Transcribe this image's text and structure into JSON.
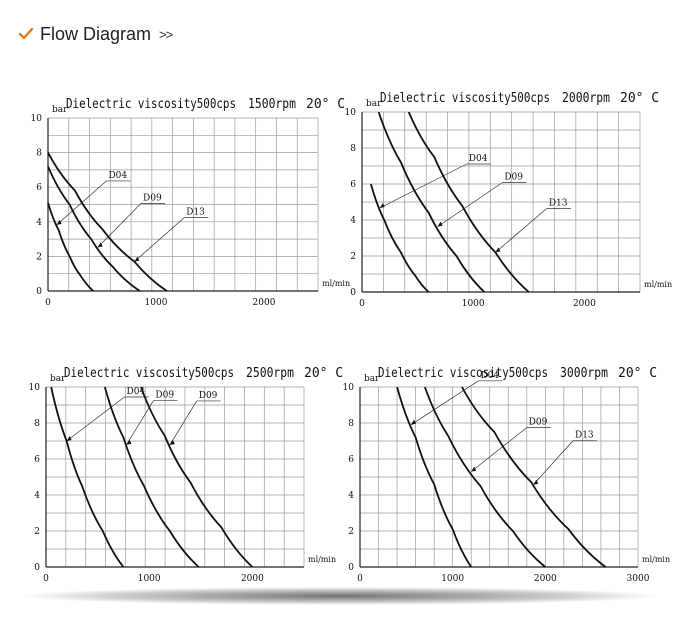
{
  "header": {
    "title": "Flow Diagram",
    "arrows": ">>",
    "icon": "check-icon",
    "icon_color": "#e07b1a"
  },
  "chart_data": [
    {
      "type": "line",
      "title": "Dielectric viscosity500cps",
      "rpm": "1500rpm",
      "temp": "20° C",
      "ylabel": "bar",
      "xlabel": "ml/min",
      "xlim": [
        0,
        2500
      ],
      "ylim": [
        0,
        10
      ],
      "xticks": [
        0,
        1000,
        2000
      ],
      "yticks": [
        0,
        2,
        4,
        6,
        8,
        10
      ],
      "grid": true,
      "series": [
        {
          "name": "D04",
          "x": [
            0,
            100,
            200,
            300,
            420
          ],
          "y": [
            5.1,
            3.5,
            2.0,
            0.9,
            0.0
          ],
          "pointer_x": 80,
          "label_x": 560
        },
        {
          "name": "D09",
          "x": [
            0,
            200,
            400,
            600,
            850
          ],
          "y": [
            7.2,
            5.0,
            3.0,
            1.4,
            0.0
          ],
          "pointer_x": 460,
          "label_x": 880
        },
        {
          "name": "D13",
          "x": [
            0,
            250,
            500,
            800,
            1100
          ],
          "y": [
            8.0,
            5.8,
            3.6,
            1.7,
            0.0
          ],
          "pointer_x": 800,
          "label_x": 1280
        }
      ]
    },
    {
      "type": "line",
      "title": "Dielectric viscosity500cps",
      "rpm": "2000rpm",
      "temp": "20° C",
      "ylabel": "bar",
      "xlabel": "ml/min",
      "xlim": [
        0,
        2500
      ],
      "ylim": [
        0,
        10
      ],
      "xticks": [
        0,
        1000,
        2000
      ],
      "yticks": [
        0,
        2,
        4,
        6,
        8,
        10
      ],
      "grid": true,
      "series": [
        {
          "name": "D04",
          "x": [
            80,
            200,
            350,
            480,
            600
          ],
          "y": [
            6.0,
            4.0,
            2.2,
            0.9,
            0.0
          ],
          "pointer_x": 160,
          "label_x": 960
        },
        {
          "name": "D09",
          "x": [
            150,
            350,
            600,
            850,
            1100
          ],
          "y": [
            10.0,
            7.2,
            4.4,
            2.0,
            0.0
          ],
          "pointer_x": 680,
          "label_x": 1280
        },
        {
          "name": "D13",
          "x": [
            420,
            650,
            900,
            1200,
            1500
          ],
          "y": [
            10.0,
            7.5,
            4.8,
            2.2,
            0.0
          ],
          "pointer_x": 1200,
          "label_x": 1680
        }
      ]
    },
    {
      "type": "line",
      "title": "Dielectric viscosity500cps",
      "rpm": "2500rpm",
      "temp": "20° C",
      "ylabel": "bar",
      "xlabel": "ml/min",
      "xlim": [
        0,
        2500
      ],
      "ylim": [
        0,
        10
      ],
      "xticks": [
        0,
        1000,
        2000
      ],
      "yticks": [
        0,
        2,
        4,
        6,
        8,
        10
      ],
      "grid": true,
      "series": [
        {
          "name": "D04",
          "x": [
            50,
            200,
            350,
            550,
            750
          ],
          "y": [
            10.0,
            7.0,
            4.5,
            2.0,
            0.0
          ],
          "pointer_x": 200,
          "label_x": 780
        },
        {
          "name": "D09",
          "x": [
            570,
            750,
            950,
            1200,
            1480
          ],
          "y": [
            10.0,
            7.2,
            4.5,
            2.0,
            0.0
          ],
          "pointer_x": 780,
          "label_x": 1060
        },
        {
          "name": "D09",
          "x": [
            920,
            1150,
            1400,
            1700,
            2000
          ],
          "y": [
            10.0,
            7.3,
            4.7,
            2.2,
            0.0
          ],
          "pointer_x": 1200,
          "label_x": 1480
        }
      ]
    },
    {
      "type": "line",
      "title": "Dielectric viscosity500cps",
      "rpm": "3000rpm",
      "temp": "20° C",
      "ylabel": "bar",
      "xlabel": "ml/min",
      "xlim": [
        0,
        3000
      ],
      "ylim": [
        0,
        10
      ],
      "xticks": [
        0,
        1000,
        2000,
        3000
      ],
      "yticks": [
        0,
        2,
        4,
        6,
        8,
        10
      ],
      "grid": true,
      "series": [
        {
          "name": "D04",
          "x": [
            400,
            600,
            800,
            1000,
            1200
          ],
          "y": [
            10.0,
            7.2,
            4.6,
            2.1,
            0.0
          ],
          "pointer_x": 550,
          "label_x": 1300
        },
        {
          "name": "D09",
          "x": [
            700,
            950,
            1300,
            1650,
            2000
          ],
          "y": [
            10.0,
            7.3,
            4.5,
            2.0,
            0.0
          ],
          "pointer_x": 1200,
          "label_x": 1820
        },
        {
          "name": "D13",
          "x": [
            1100,
            1450,
            1850,
            2250,
            2650
          ],
          "y": [
            10.0,
            7.5,
            4.7,
            2.1,
            0.0
          ],
          "pointer_x": 1870,
          "label_x": 2320
        }
      ]
    }
  ]
}
